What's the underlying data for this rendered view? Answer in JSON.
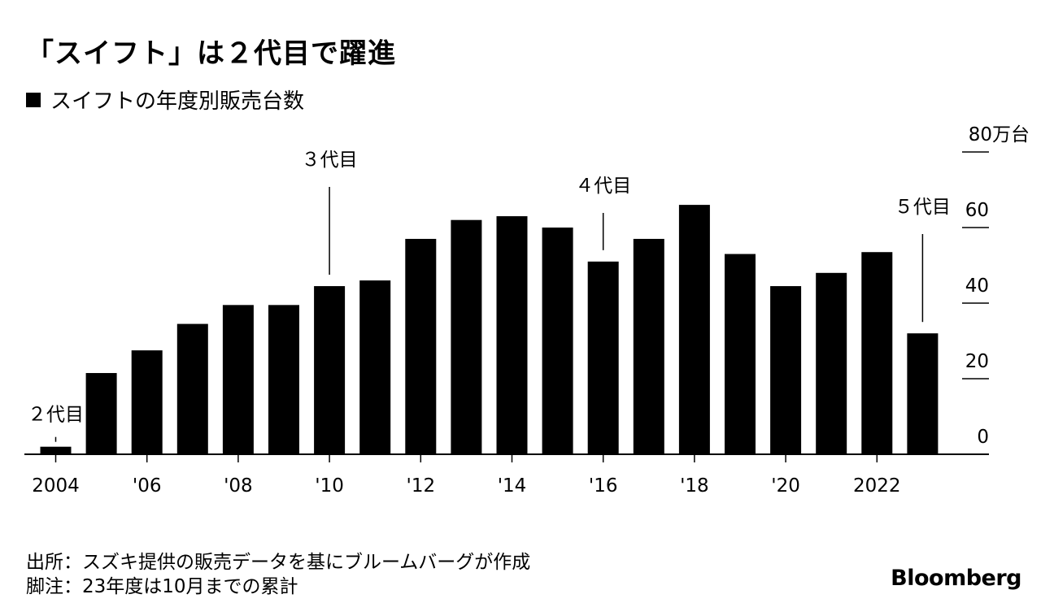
{
  "header": {
    "title": "「スイフト」は２代目で躍進",
    "legend_label": "スイフトの年度別販売台数"
  },
  "chart_data": {
    "type": "bar",
    "title": "「スイフト」は２代目で躍進",
    "subtitle": "スイフトの年度別販売台数",
    "categories": [
      "2004",
      "2005",
      "2006",
      "2007",
      "2008",
      "2009",
      "2010",
      "2011",
      "2012",
      "2013",
      "2014",
      "2015",
      "2016",
      "2017",
      "2018",
      "2019",
      "2020",
      "2021",
      "2022",
      "2023"
    ],
    "values": [
      2,
      21.5,
      27.5,
      34.5,
      39.5,
      39.5,
      44.5,
      46,
      57,
      62,
      63,
      60,
      51,
      57,
      66,
      53,
      44.5,
      48,
      53.5,
      32
    ],
    "series": [
      {
        "name": "スイフトの年度別販売台数",
        "values": [
          2,
          21.5,
          27.5,
          34.5,
          39.5,
          39.5,
          44.5,
          46,
          57,
          62,
          63,
          60,
          51,
          57,
          66,
          53,
          44.5,
          48,
          53.5,
          32
        ]
      }
    ],
    "x_tick_labels": [
      {
        "category": "2004",
        "label": "2004"
      },
      {
        "category": "2006",
        "label": "'06"
      },
      {
        "category": "2008",
        "label": "'08"
      },
      {
        "category": "2010",
        "label": "'10"
      },
      {
        "category": "2012",
        "label": "'12"
      },
      {
        "category": "2014",
        "label": "'14"
      },
      {
        "category": "2016",
        "label": "'16"
      },
      {
        "category": "2018",
        "label": "'18"
      },
      {
        "category": "2020",
        "label": "'20"
      },
      {
        "category": "2022",
        "label": "2022"
      }
    ],
    "y_ticks": [
      {
        "value": 0,
        "label": "0"
      },
      {
        "value": 20,
        "label": "20"
      },
      {
        "value": 40,
        "label": "40"
      },
      {
        "value": 60,
        "label": "60"
      },
      {
        "value": 80,
        "label": "80万台"
      }
    ],
    "ylim": [
      0,
      80
    ],
    "xlabel": "",
    "ylabel": "",
    "y_axis_side": "right",
    "grid": false,
    "annotations": [
      {
        "category": "2004",
        "label": "２代目"
      },
      {
        "category": "2010",
        "label": "３代目"
      },
      {
        "category": "2016",
        "label": "４代目"
      },
      {
        "category": "2023",
        "label": "５代目"
      }
    ],
    "bar_color": "#000000"
  },
  "footer": {
    "source": "出所：スズキ提供の販売データを基にブルームバーグが作成",
    "note": "脚注：23年度は10月までの累計",
    "brand": "Bloomberg"
  }
}
